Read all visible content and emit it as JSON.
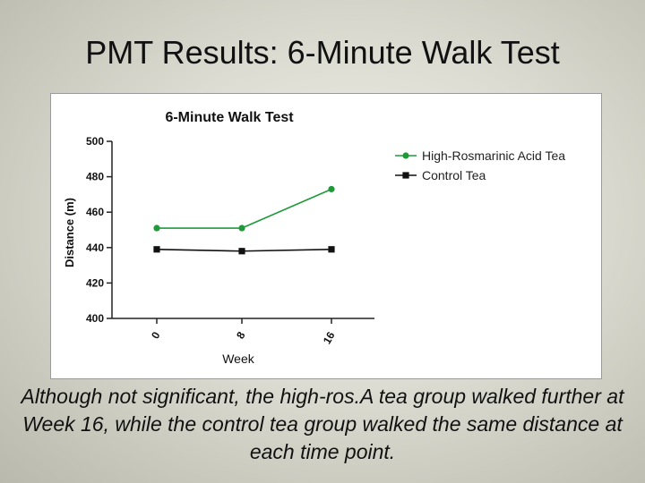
{
  "slide": {
    "title": "PMT Results:  6-Minute Walk Test",
    "caption": "Although not significant, the high-ros.A tea group walked further at Week 16, while the control tea group walked the same distance at each time point."
  },
  "chart_data": {
    "type": "line",
    "title": "6-Minute Walk Test",
    "xlabel": "Week",
    "ylabel": "Distance (m)",
    "categories": [
      "0",
      "8",
      "16"
    ],
    "ylim": [
      400,
      500
    ],
    "yticks": [
      400,
      420,
      440,
      460,
      480,
      500
    ],
    "grid": false,
    "legend_position": "top-right",
    "series": [
      {
        "name": "High-Rosmarinic Acid Tea",
        "values": [
          451,
          451,
          473
        ],
        "color": "#1f9a3a",
        "marker": "circle"
      },
      {
        "name": "Control Tea",
        "values": [
          439,
          438,
          439
        ],
        "color": "#111111",
        "marker": "square"
      }
    ]
  }
}
